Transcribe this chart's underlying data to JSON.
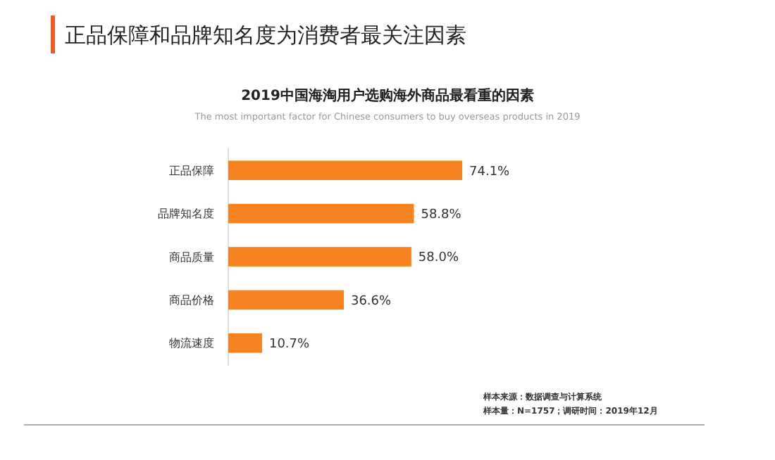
{
  "chart_data": {
    "type": "bar",
    "orientation": "horizontal",
    "title": "2019中国海淘用户选购海外商品最看重的因素",
    "subtitle": "The most important factor for Chinese consumers to buy overseas products in 2019",
    "categories": [
      "正品保障",
      "品牌知名度",
      "商品质量",
      "商品价格",
      "物流速度"
    ],
    "values": [
      74.1,
      58.8,
      58.0,
      36.6,
      10.7
    ],
    "value_labels": [
      "74.1%",
      "58.8%",
      "58.0%",
      "36.6%",
      "10.7%"
    ],
    "color": "#f68220",
    "annotations": [
      "正品保障和品牌知名度为消费者最关注因素",
      "样本来源：数据调查与计算系统",
      "样本量：N=1757；调研时间：2019年12月"
    ]
  }
}
